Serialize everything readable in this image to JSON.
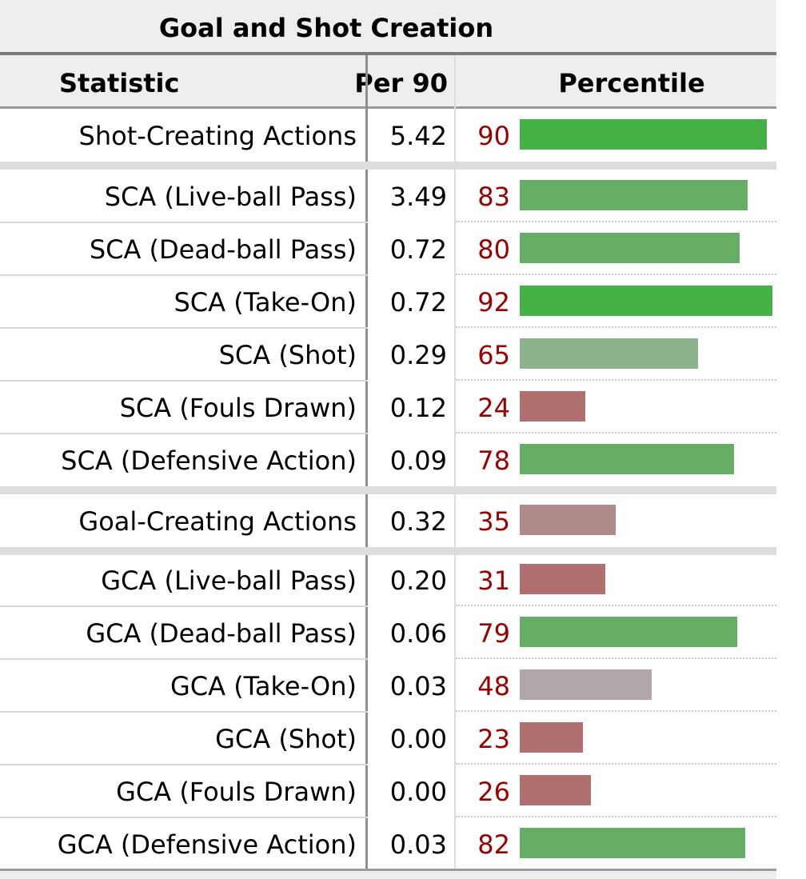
{
  "table": {
    "title": "Goal and Shot Creation",
    "columns": {
      "statistic": "Statistic",
      "per90": "Per 90",
      "percentile": "Percentile"
    },
    "rows": [
      {
        "statistic": "Shot-Creating Actions",
        "per90": "5.42",
        "percentile": 90
      },
      {
        "statistic": "SCA (Live-ball Pass)",
        "per90": "3.49",
        "percentile": 83
      },
      {
        "statistic": "SCA (Dead-ball Pass)",
        "per90": "0.72",
        "percentile": 80
      },
      {
        "statistic": "SCA (Take-On)",
        "per90": "0.72",
        "percentile": 92
      },
      {
        "statistic": "SCA (Shot)",
        "per90": "0.29",
        "percentile": 65
      },
      {
        "statistic": "SCA (Fouls Drawn)",
        "per90": "0.12",
        "percentile": 24
      },
      {
        "statistic": "SCA (Defensive Action)",
        "per90": "0.09",
        "percentile": 78
      },
      {
        "statistic": "Goal-Creating Actions",
        "per90": "0.32",
        "percentile": 35
      },
      {
        "statistic": "GCA (Live-ball Pass)",
        "per90": "0.20",
        "percentile": 31
      },
      {
        "statistic": "GCA (Dead-ball Pass)",
        "per90": "0.06",
        "percentile": 79
      },
      {
        "statistic": "GCA (Take-On)",
        "per90": "0.03",
        "percentile": 48
      },
      {
        "statistic": "GCA (Shot)",
        "per90": "0.00",
        "percentile": 23
      },
      {
        "statistic": "GCA (Fouls Drawn)",
        "per90": "0.00",
        "percentile": 26
      },
      {
        "statistic": "GCA (Defensive Action)",
        "per90": "0.03",
        "percentile": 82
      }
    ]
  },
  "colors": {
    "bar_high": "#45b044",
    "bar_good": "#66ae66",
    "bar_mid_good": "#8db38a",
    "bar_neutral": "#b0a8a8",
    "bar_mid_bad": "#b08a8a",
    "bar_bad": "#b07070",
    "percentile_text": "#990000",
    "header_bg": "#eeeeee",
    "separator": "#dddddd"
  }
}
